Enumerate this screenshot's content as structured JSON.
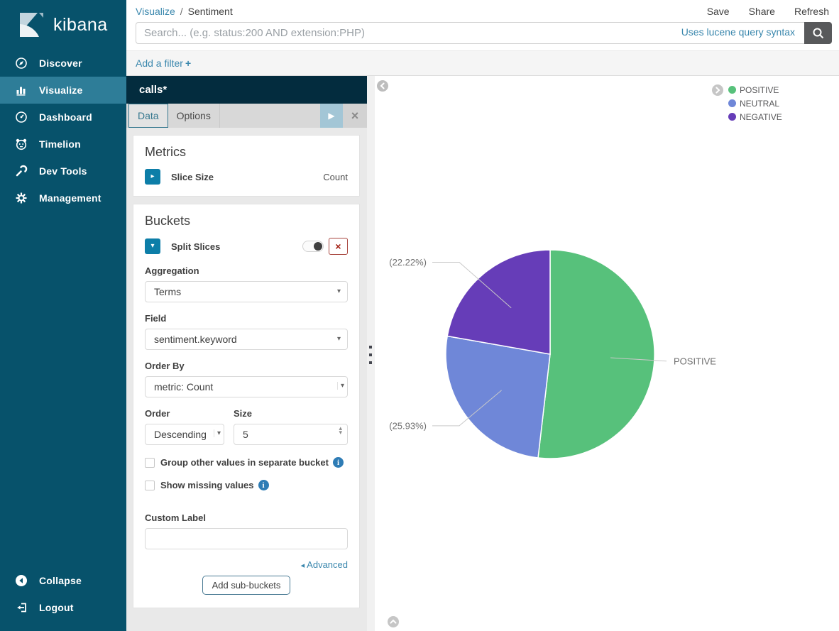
{
  "sidebar": {
    "logo_label": "kibana",
    "items": [
      {
        "label": "Discover",
        "icon": "discover-compass",
        "active": false
      },
      {
        "label": "Visualize",
        "icon": "bar-chart",
        "active": true
      },
      {
        "label": "Dashboard",
        "icon": "gauge",
        "active": false
      },
      {
        "label": "Timelion",
        "icon": "timelion",
        "active": false
      },
      {
        "label": "Dev Tools",
        "icon": "wrench",
        "active": false
      },
      {
        "label": "Management",
        "icon": "gear",
        "active": false
      }
    ],
    "footer": [
      {
        "label": "Collapse",
        "icon": "collapse-circle"
      },
      {
        "label": "Logout",
        "icon": "logout"
      }
    ]
  },
  "topnav": {
    "breadcrumb": {
      "link": "Visualize",
      "separator": "/",
      "current": "Sentiment"
    },
    "actions": [
      {
        "label": "Save"
      },
      {
        "label": "Share"
      },
      {
        "label": "Refresh"
      }
    ],
    "search": {
      "placeholder": "Search... (e.g. status:200 AND extension:PHP)",
      "syntax_hint": "Uses lucene query syntax"
    }
  },
  "filter_bar": {
    "add_filter_label": "Add a filter"
  },
  "editor": {
    "index_pattern": "calls*",
    "tabs": [
      {
        "label": "Data",
        "active": true
      },
      {
        "label": "Options",
        "active": false
      }
    ],
    "metrics": {
      "heading": "Metrics",
      "rows": [
        {
          "label": "Slice Size",
          "value": "Count"
        }
      ]
    },
    "buckets": {
      "heading": "Buckets",
      "agg_title": "Split Slices",
      "aggregation": {
        "label": "Aggregation",
        "value": "Terms"
      },
      "field": {
        "label": "Field",
        "value": "sentiment.keyword"
      },
      "order_by": {
        "label": "Order By",
        "value": "metric: Count"
      },
      "order": {
        "label": "Order",
        "value": "Descending"
      },
      "size": {
        "label": "Size",
        "value": "5"
      },
      "checkboxes": [
        {
          "label": "Group other values in separate bucket",
          "checked": false
        },
        {
          "label": "Show missing values",
          "checked": false
        }
      ],
      "custom_label": {
        "label": "Custom Label",
        "value": ""
      },
      "advanced_label": "Advanced",
      "add_subbuckets_label": "Add sub-buckets"
    }
  },
  "chart_data": {
    "type": "pie",
    "title": "Sentiment",
    "direction": "clockwise",
    "start_angle_deg": 0,
    "series": [
      {
        "name": "POSITIVE",
        "percent": 51.85,
        "color": "#57c17b",
        "callout": "POSITIVE",
        "label_side": "right"
      },
      {
        "name": "NEUTRAL",
        "percent": 25.93,
        "color": "#6f87d8",
        "callout": "(25.93%)",
        "label_side": "left"
      },
      {
        "name": "NEGATIVE",
        "percent": 22.22,
        "color": "#663db8",
        "callout": "(22.22%)",
        "label_side": "left"
      }
    ],
    "legend": {
      "position": "top-right",
      "items": [
        {
          "label": "POSITIVE",
          "color": "#57c17b"
        },
        {
          "label": "NEUTRAL",
          "color": "#6f87d8"
        },
        {
          "label": "NEGATIVE",
          "color": "#663db8"
        }
      ]
    }
  },
  "glyphs": {
    "play": "▶",
    "close": "×",
    "remove": "×",
    "caret_down": "▾",
    "triangle_right": "▸",
    "triangle_down": "▾",
    "spinner_up": "▴",
    "spinner_down": "▾",
    "advanced_marker": "◂",
    "plus": "+",
    "info": "i"
  },
  "colors": {
    "accent_link": "#3a87ad",
    "teal_button": "#0d7ea8",
    "sidebar_bg": "#07526b",
    "sidebar_active": "#2e7d98",
    "editor_header_bg": "#032c3e"
  }
}
